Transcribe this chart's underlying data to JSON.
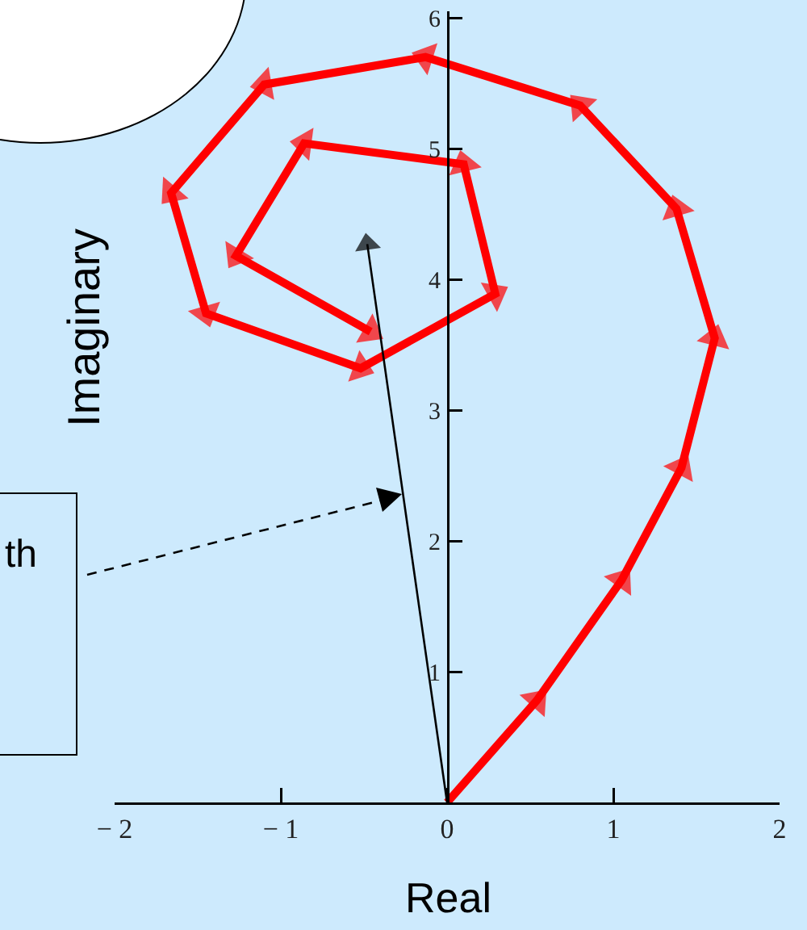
{
  "chart_data": {
    "type": "line",
    "xlabel": "Real",
    "ylabel": "Imaginary",
    "annotations": [
      "th"
    ],
    "xlim": [
      -2,
      2
    ],
    "ylim": [
      0,
      6.05
    ],
    "xticks": [
      {
        "value": -2,
        "label": "− 2"
      },
      {
        "value": -1,
        "label": "− 1"
      },
      0,
      1,
      2
    ],
    "yticks": [
      {
        "value": 0,
        "label": null
      },
      1,
      2,
      3,
      4,
      5,
      6
    ],
    "grid": false,
    "marker": "triangle",
    "line_style": "solid",
    "series": [
      {
        "color": "#ff0000",
        "x": [
          0,
          0.54,
          1.05,
          1.41,
          1.61,
          1.38,
          0.8,
          -0.13,
          -1.1,
          -1.66,
          -1.45,
          -0.52,
          0.29,
          0.1,
          -0.86,
          -1.27,
          -0.46
        ],
        "values": [
          0,
          0.78,
          1.7,
          2.56,
          3.55,
          4.54,
          5.33,
          5.7,
          5.49,
          4.66,
          3.74,
          3.32,
          3.89,
          4.88,
          5.04,
          4.18,
          3.6
        ]
      },
      {
        "color": "#000000",
        "x": [
          0,
          -0.48
        ],
        "values": [
          0,
          4.27
        ]
      }
    ]
  }
}
